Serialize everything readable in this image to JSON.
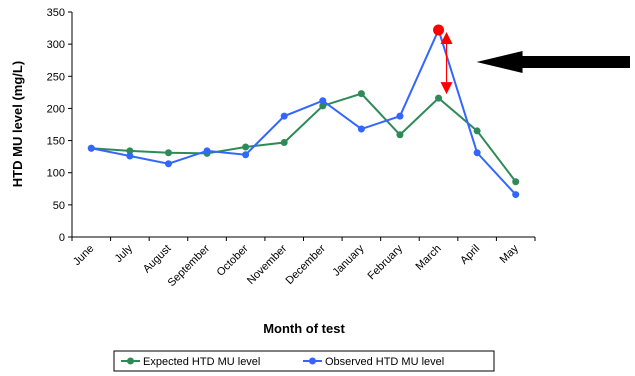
{
  "chart_data": {
    "type": "line",
    "title": "",
    "xlabel": "Month of test",
    "ylabel": "HTD MU level (mg/L)",
    "categories": [
      "June",
      "July",
      "August",
      "September",
      "October",
      "November",
      "December",
      "January",
      "February",
      "March",
      "April",
      "May"
    ],
    "yticks": [
      "0",
      "50",
      "100",
      "150",
      "200",
      "250",
      "300",
      "350"
    ],
    "ylim": [
      0,
      350
    ],
    "grid": false,
    "legend_position": "bottom",
    "series": [
      {
        "name": "Expected HTD MU level",
        "color": "#2e8b57",
        "values": [
          138,
          134,
          131,
          130,
          140,
          147,
          204,
          223,
          159,
          216,
          165,
          86
        ]
      },
      {
        "name": "Observed HTD MU level",
        "color": "#3366ff",
        "values": [
          138,
          126,
          114,
          134,
          128,
          188,
          212,
          168,
          188,
          322,
          131,
          66
        ]
      }
    ],
    "annotations": [
      {
        "type": "highlight-point",
        "category": "March",
        "value": 322,
        "color": "#ff0000"
      },
      {
        "type": "double-arrow",
        "category": "March",
        "from": 322,
        "to": 216,
        "color": "#ff0000"
      },
      {
        "type": "pointer-arrow",
        "points_to": "March",
        "color": "#000000"
      }
    ]
  }
}
